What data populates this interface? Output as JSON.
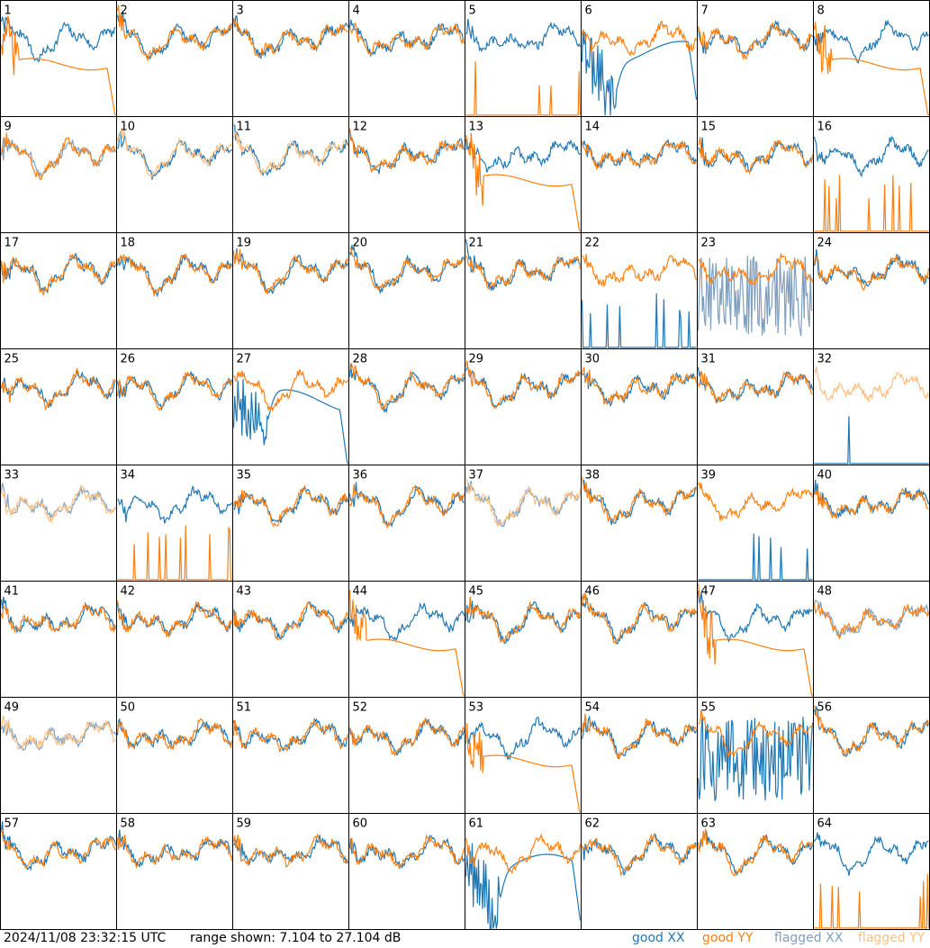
{
  "chart_data": {
    "type": "line",
    "grid": {
      "rows": 8,
      "cols": 8
    },
    "panel_labels": [
      "1",
      "2",
      "3",
      "4",
      "5",
      "6",
      "7",
      "8",
      "9",
      "10",
      "11",
      "12",
      "13",
      "14",
      "15",
      "16",
      "17",
      "18",
      "19",
      "20",
      "21",
      "22",
      "23",
      "24",
      "25",
      "26",
      "27",
      "28",
      "29",
      "30",
      "31",
      "32",
      "33",
      "34",
      "35",
      "36",
      "37",
      "38",
      "39",
      "40",
      "41",
      "42",
      "43",
      "44",
      "45",
      "46",
      "47",
      "48",
      "49",
      "50",
      "51",
      "52",
      "53",
      "54",
      "55",
      "56",
      "57",
      "58",
      "59",
      "60",
      "61",
      "62",
      "63",
      "64"
    ],
    "ylim": [
      7.104,
      27.104
    ],
    "series_styles": {
      "good_xx": "#1f77b4",
      "good_yy": "#ff7f0e",
      "flagged_xx": "#7f9fbf",
      "flagged_yy": "#ffbf80"
    },
    "panel_patterns": {
      "1": [
        "normal",
        "decay"
      ],
      "5": [
        "normal",
        "spikes"
      ],
      "6": [
        "dip",
        "normal"
      ],
      "8": [
        "normal",
        "decay"
      ],
      "9": [
        "fspikes",
        "normal"
      ],
      "10": [
        "normal",
        "fnormal"
      ],
      "11": [
        "normal",
        "fnormal"
      ],
      "13": [
        "normal",
        "decay"
      ],
      "16": [
        "normal",
        "spikes"
      ],
      "22": [
        "spikes",
        "normal"
      ],
      "23": [
        "fnoisy",
        "normal"
      ],
      "27": [
        "dip",
        "normal"
      ],
      "32": [
        "spikes",
        "fnormal"
      ],
      "33": [
        "fnormal",
        "fnormal"
      ],
      "34": [
        "normal",
        "spikes"
      ],
      "37": [
        "fnormal",
        "fnormal"
      ],
      "39": [
        "spikes",
        "normal"
      ],
      "44": [
        "normal",
        "decay"
      ],
      "47": [
        "normal",
        "decay"
      ],
      "48": [
        "fnormal",
        "normal"
      ],
      "49": [
        "fnormal",
        "fnormal"
      ],
      "53": [
        "normal",
        "decay"
      ],
      "55": [
        "noisy",
        "normal"
      ],
      "61": [
        "dip",
        "normal"
      ],
      "64": [
        "normal",
        "spikes"
      ]
    }
  },
  "footer": {
    "timestamp": "2024/11/08 23:32:15 UTC",
    "range": "range shown: 7.104 to 27.104 dB"
  },
  "legend": {
    "good_xx": "good XX",
    "good_yy": "good YY",
    "flagged_xx": "flagged XX",
    "flagged_yy": "flagged YY"
  }
}
